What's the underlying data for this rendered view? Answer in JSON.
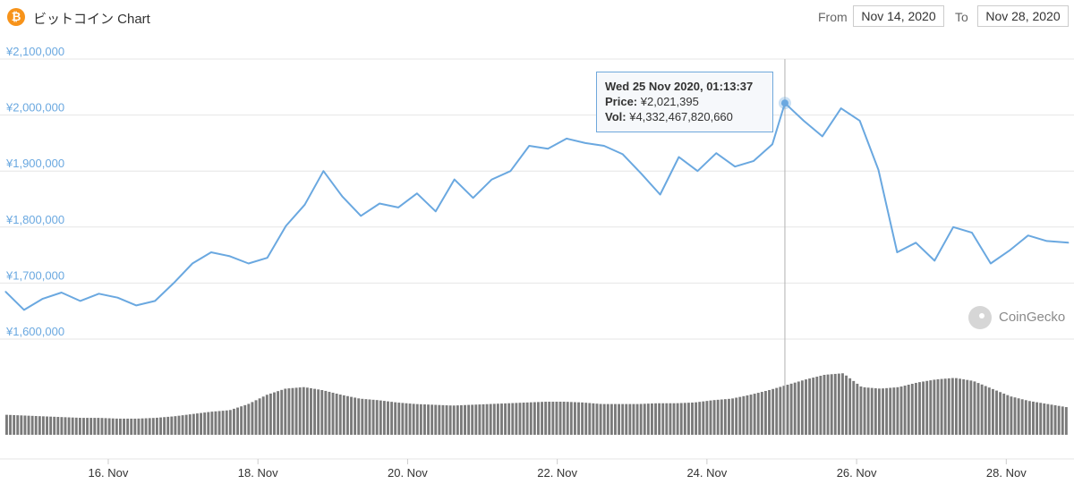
{
  "header": {
    "coin_icon": "bitcoin-icon",
    "coin_symbol": "₿",
    "title": "ビットコイン Chart",
    "from_label": "From",
    "from_value": "Nov 14, 2020",
    "to_label": "To",
    "to_value": "Nov 28, 2020"
  },
  "tooltip": {
    "date": "Wed 25 Nov 2020, 01:13:37",
    "price_label": "Price:",
    "price_value": "¥2,021,395",
    "vol_label": "Vol:",
    "vol_value": "¥4,332,467,820,660"
  },
  "watermark": {
    "text": "CoinGecko",
    "icon": "coingecko-icon"
  },
  "colors": {
    "line": "#6aa8e0",
    "axis_label": "#6aa8e0",
    "grid": "#e6e6e6",
    "volume": "#7a7a7a",
    "crosshair": "#b0b0b0",
    "bitcoin": "#f7931a"
  },
  "chart_data": {
    "type": "line",
    "title": "ビットコイン Chart",
    "y_ticks": [
      "¥2,100,000",
      "¥2,000,000",
      "¥1,900,000",
      "¥1,800,000",
      "¥1,700,000",
      "¥1,600,000"
    ],
    "x_ticks": [
      "16. Nov",
      "18. Nov",
      "20. Nov",
      "22. Nov",
      "24. Nov",
      "26. Nov",
      "28. Nov"
    ],
    "ylim": [
      1600000,
      2100000
    ],
    "x_range": [
      "2020-11-14T15:00",
      "2020-11-28T20:00"
    ],
    "grid": true,
    "price_series": {
      "name": "Price",
      "x": [
        "2020-11-14T15:00",
        "2020-11-14T21:00",
        "2020-11-15T03:00",
        "2020-11-15T09:00",
        "2020-11-15T15:00",
        "2020-11-15T21:00",
        "2020-11-16T03:00",
        "2020-11-16T09:00",
        "2020-11-16T15:00",
        "2020-11-16T21:00",
        "2020-11-17T03:00",
        "2020-11-17T09:00",
        "2020-11-17T15:00",
        "2020-11-17T21:00",
        "2020-11-18T03:00",
        "2020-11-18T09:00",
        "2020-11-18T15:00",
        "2020-11-18T21:00",
        "2020-11-19T03:00",
        "2020-11-19T09:00",
        "2020-11-19T15:00",
        "2020-11-19T21:00",
        "2020-11-20T03:00",
        "2020-11-20T09:00",
        "2020-11-20T15:00",
        "2020-11-20T21:00",
        "2020-11-21T03:00",
        "2020-11-21T09:00",
        "2020-11-21T15:00",
        "2020-11-21T21:00",
        "2020-11-22T03:00",
        "2020-11-22T09:00",
        "2020-11-22T15:00",
        "2020-11-22T21:00",
        "2020-11-23T03:00",
        "2020-11-23T09:00",
        "2020-11-23T15:00",
        "2020-11-23T21:00",
        "2020-11-24T03:00",
        "2020-11-24T09:00",
        "2020-11-24T15:00",
        "2020-11-24T21:00",
        "2020-11-25T01:00",
        "2020-11-25T07:00",
        "2020-11-25T13:00",
        "2020-11-25T19:00",
        "2020-11-26T01:00",
        "2020-11-26T07:00",
        "2020-11-26T13:00",
        "2020-11-26T19:00",
        "2020-11-27T01:00",
        "2020-11-27T07:00",
        "2020-11-27T13:00",
        "2020-11-27T19:00",
        "2020-11-28T01:00",
        "2020-11-28T07:00",
        "2020-11-28T13:00",
        "2020-11-28T20:00"
      ],
      "values": [
        1685000,
        1652000,
        1672000,
        1683000,
        1668000,
        1681000,
        1674000,
        1660000,
        1668000,
        1700000,
        1735000,
        1755000,
        1748000,
        1735000,
        1745000,
        1802000,
        1840000,
        1900000,
        1855000,
        1820000,
        1842000,
        1835000,
        1860000,
        1828000,
        1885000,
        1852000,
        1885000,
        1900000,
        1945000,
        1940000,
        1958000,
        1950000,
        1945000,
        1930000,
        1895000,
        1858000,
        1925000,
        1900000,
        1932000,
        1908000,
        1918000,
        1948000,
        2021395,
        1990000,
        1962000,
        2012000,
        1990000,
        1902000,
        1755000,
        1772000,
        1740000,
        1800000,
        1790000,
        1735000,
        1758000,
        1785000,
        1775000,
        1772000
      ]
    },
    "volume_series": {
      "name": "Vol",
      "relative_values": [
        0.26,
        0.25,
        0.24,
        0.23,
        0.22,
        0.22,
        0.21,
        0.21,
        0.22,
        0.24,
        0.27,
        0.3,
        0.32,
        0.4,
        0.52,
        0.6,
        0.62,
        0.58,
        0.52,
        0.47,
        0.45,
        0.42,
        0.4,
        0.39,
        0.38,
        0.39,
        0.4,
        0.41,
        0.42,
        0.43,
        0.43,
        0.42,
        0.4,
        0.4,
        0.4,
        0.41,
        0.41,
        0.42,
        0.45,
        0.47,
        0.52,
        0.58,
        0.65,
        0.72,
        0.78,
        0.8,
        0.62,
        0.6,
        0.62,
        0.68,
        0.72,
        0.74,
        0.7,
        0.6,
        0.5,
        0.44,
        0.4,
        0.36
      ]
    },
    "highlight_index": 42
  }
}
